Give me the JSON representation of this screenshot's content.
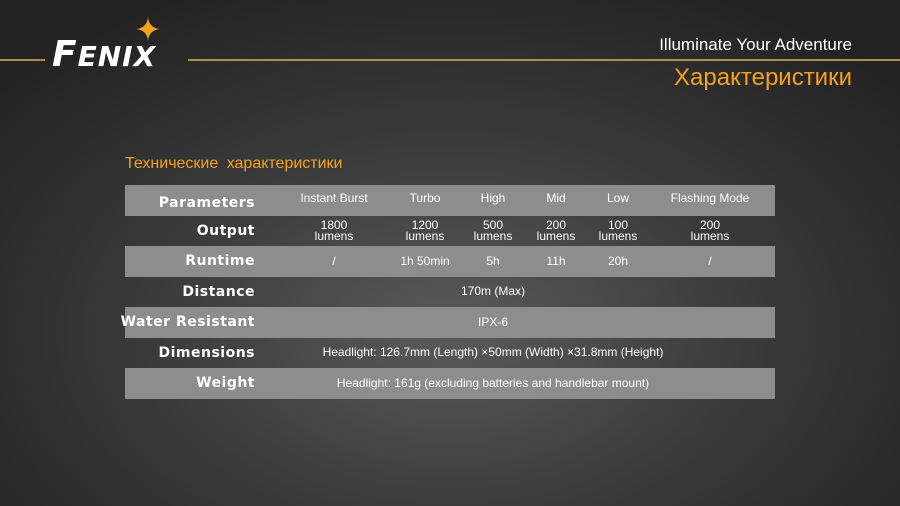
{
  "header": {
    "logo": "FENIX",
    "tagline": "Illuminate Your Adventure",
    "title": "Характеристики",
    "accent": "#f4a21c"
  },
  "subtitle": "Технические характеристики",
  "table": {
    "columns": [
      "Parameters",
      "Instant Burst",
      "Turbo",
      "High",
      "Mid",
      "Low",
      "Flashing Mode"
    ],
    "output": {
      "label": "Output",
      "values": [
        "1800\nlumens",
        "1200\nlumens",
        "500\nlumens",
        "200\nlumens",
        "100\nlumens",
        "200\nlumens"
      ]
    },
    "runtime": {
      "label": "Runtime",
      "values": [
        "/",
        "1h 50min",
        "5h",
        "11h",
        "20h",
        "/"
      ]
    },
    "distance": {
      "label": "Distance",
      "value": "170m (Max)"
    },
    "water": {
      "label": "Water Resistant",
      "value": "IPX-6"
    },
    "dimensions": {
      "label": "Dimensions",
      "value": "Headlight: 126.7mm (Length) ×50mm (Width) ×31.8mm (Height)"
    },
    "weight": {
      "label": "Weight",
      "value": "Headlight: 161g (excluding batteries and handlebar mount)"
    }
  }
}
